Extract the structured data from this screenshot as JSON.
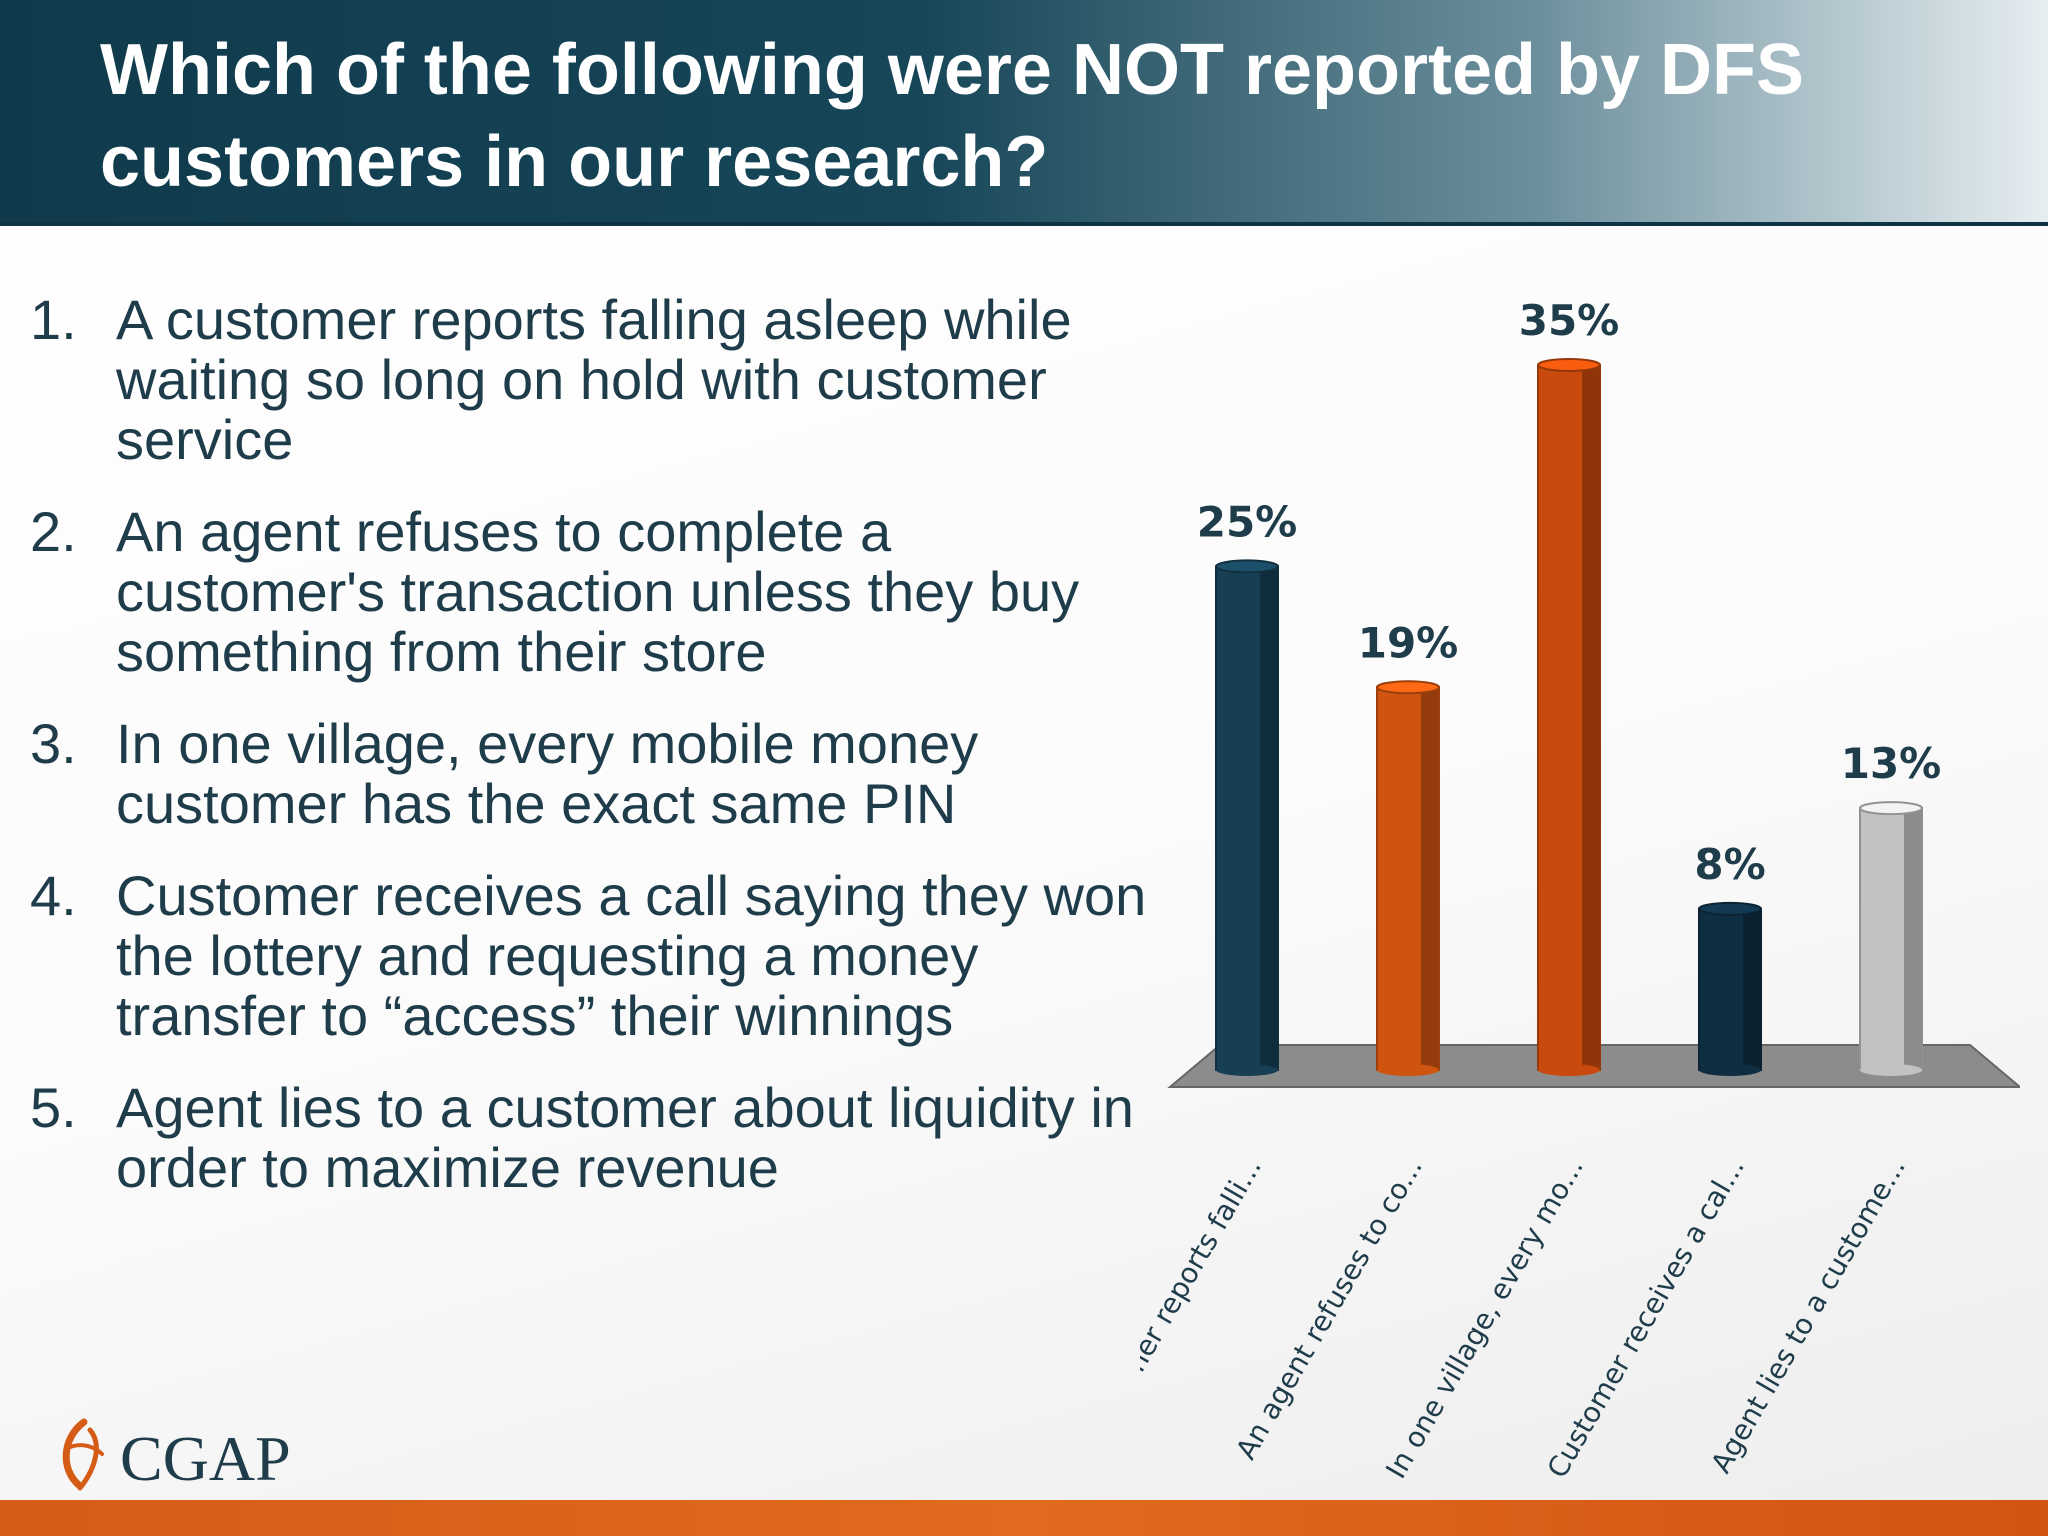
{
  "slide": {
    "title": "Which of the following were NOT reported by DFS customers in our research?",
    "questions": [
      {
        "num": "1.",
        "text": "A customer reports falling asleep while waiting so long on hold with customer service"
      },
      {
        "num": "2.",
        "text": "An agent refuses to complete a customer's transaction unless they buy something from their store"
      },
      {
        "num": "3.",
        "text": "In one village, every mobile money customer has the exact same PIN"
      },
      {
        "num": "4.",
        "text": "Customer receives a call saying they won the lottery and requesting a money transfer to “access” their winnings"
      },
      {
        "num": "5.",
        "text": "Agent lies to a customer about liquidity in order to maximize revenue"
      }
    ],
    "logo_text": "CGAP",
    "colors": {
      "header_dark": "#0f3a4c",
      "text": "#1f3c4a",
      "accent_orange": "#d55c16"
    }
  },
  "chart_data": {
    "type": "bar",
    "categories": [
      "A customer reports falli...",
      "An agent refuses to co...",
      "In one village, every mo...",
      "Customer receives a cal...",
      "Agent lies to a custome..."
    ],
    "values": [
      25,
      19,
      35,
      8,
      13
    ],
    "value_labels": [
      "25%",
      "19%",
      "35%",
      "8%",
      "13%"
    ],
    "bar_colors": [
      "#163f54",
      "#cf5410",
      "#c84a0c",
      "#0f2e42",
      "#c2c2c2"
    ],
    "ylim": [
      0,
      35
    ],
    "grid": false,
    "legend": "none"
  }
}
